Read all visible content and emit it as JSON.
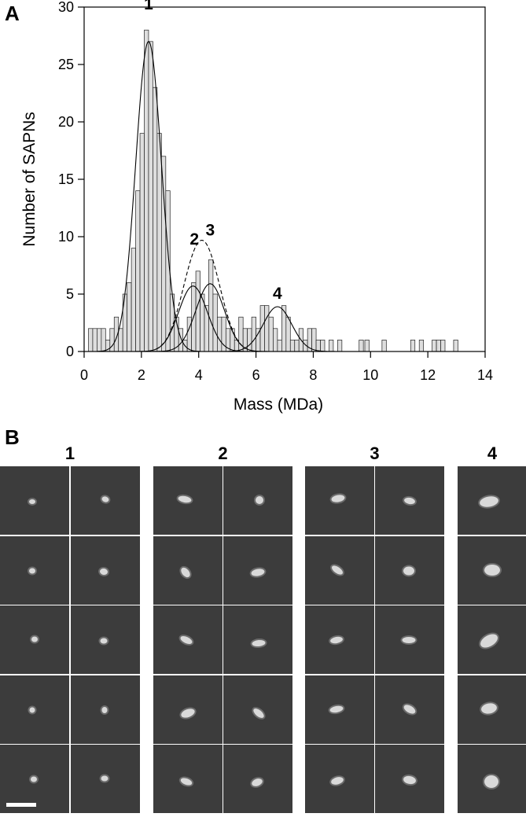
{
  "panel_a": {
    "letter": "A"
  },
  "panel_b": {
    "letter": "B",
    "groups": [
      {
        "label": "1",
        "columns": 2
      },
      {
        "label": "2",
        "columns": 2
      },
      {
        "label": "3",
        "columns": 2
      },
      {
        "label": "4",
        "columns": 1
      }
    ],
    "rows": 5
  },
  "chart_data": {
    "type": "bar",
    "title": "",
    "xlabel": "Mass (MDa)",
    "ylabel": "Number of SAPNs",
    "xlim": [
      0,
      14
    ],
    "ylim": [
      0,
      30
    ],
    "x_ticks": [
      0,
      2,
      4,
      6,
      8,
      10,
      12,
      14
    ],
    "y_ticks": [
      0,
      5,
      10,
      15,
      20,
      25,
      30
    ],
    "bin_width": 0.15,
    "bin_start": 0.15,
    "bin_values": [
      2,
      2,
      2,
      2,
      1,
      2,
      3,
      2,
      5,
      6,
      9,
      14,
      19,
      28,
      27,
      23,
      19,
      17,
      14,
      5,
      3,
      2,
      1,
      3,
      6,
      7,
      5,
      4,
      8,
      5,
      3,
      3,
      2,
      2,
      1,
      3,
      2,
      2,
      3,
      2,
      4,
      4,
      3,
      2,
      1,
      4,
      3,
      1,
      1,
      2,
      1,
      2,
      2,
      1,
      1,
      0,
      1,
      0,
      1,
      0,
      0,
      0,
      0,
      1
    ],
    "sparse_bins": [
      {
        "x": 9.8,
        "value": 1
      },
      {
        "x": 10.4,
        "value": 1
      },
      {
        "x": 11.4,
        "value": 1
      },
      {
        "x": 11.7,
        "value": 1
      },
      {
        "x": 12.15,
        "value": 1
      },
      {
        "x": 12.3,
        "value": 1
      },
      {
        "x": 12.45,
        "value": 1
      },
      {
        "x": 12.9,
        "value": 1
      }
    ],
    "fits": [
      {
        "label": "1",
        "mean": 2.25,
        "sd": 0.45,
        "amplitude": 27
      },
      {
        "label": "2",
        "mean": 3.8,
        "sd": 0.5,
        "amplitude": 5.7
      },
      {
        "label": "3",
        "mean": 4.4,
        "sd": 0.5,
        "amplitude": 5.9
      },
      {
        "label": "4",
        "mean": 6.75,
        "sd": 0.5,
        "amplitude": 3.9
      }
    ],
    "sum_fit": {
      "style": "dashed",
      "components": [
        "2",
        "3"
      ]
    },
    "peak_labels": [
      {
        "label": "1",
        "x": 2.25,
        "y": 29.8
      },
      {
        "label": "2",
        "x": 3.85,
        "y": 9.3
      },
      {
        "label": "3",
        "x": 4.4,
        "y": 10.1
      },
      {
        "label": "4",
        "x": 6.75,
        "y": 4.6
      }
    ],
    "grid": false,
    "legend": "none"
  },
  "colors": {
    "bar_fill": "#dedede",
    "bar_stroke": "#222222",
    "image_bg": "#3c3c3c"
  }
}
